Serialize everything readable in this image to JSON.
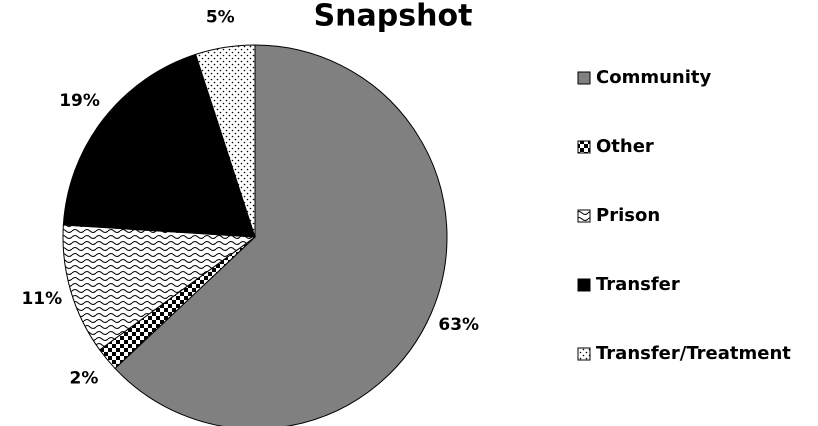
{
  "chart_data": {
    "type": "pie",
    "title": "Snapshot",
    "categories": [
      "Community",
      "Other",
      "Prison",
      "Transfer",
      "Transfer/Treatment"
    ],
    "values": [
      63,
      2,
      11,
      19,
      5
    ],
    "value_labels": [
      "63%",
      "2%",
      "11%",
      "19%",
      "5%"
    ],
    "colors": [
      "#808080",
      "#000000",
      "#000000",
      "#000000",
      "#ffffff"
    ],
    "patterns": [
      "solid",
      "checker",
      "wave",
      "solid",
      "dots"
    ],
    "legend": "right"
  }
}
